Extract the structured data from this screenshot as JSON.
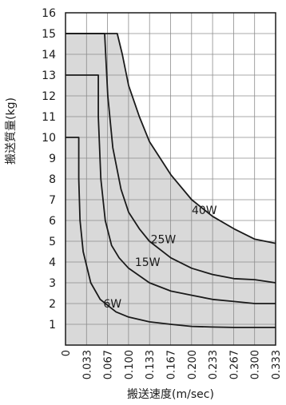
{
  "chart_data": {
    "type": "line",
    "xlabel": "搬送速度(m/sec)",
    "ylabel": "搬送質量(kg)",
    "xlim": [
      0,
      0.333
    ],
    "ylim": [
      0,
      16
    ],
    "x_ticks": [
      "0",
      "0.033",
      "0.067",
      "0.100",
      "0.133",
      "0.167",
      "0.200",
      "0.233",
      "0.267",
      "0.300",
      "0.333"
    ],
    "y_ticks": [
      "1",
      "2",
      "3",
      "4",
      "5",
      "6",
      "7",
      "8",
      "9",
      "10",
      "11",
      "12",
      "13",
      "14",
      "15",
      "16"
    ],
    "grid": true,
    "fill_color": "#d9d9d9",
    "line_color": "#1a1a1a",
    "series": [
      {
        "name": "6W",
        "points": [
          [
            0,
            10
          ],
          [
            0.021,
            10
          ],
          [
            0.021,
            8
          ],
          [
            0.023,
            6
          ],
          [
            0.028,
            4.5
          ],
          [
            0.04,
            3
          ],
          [
            0.055,
            2.2
          ],
          [
            0.08,
            1.6
          ],
          [
            0.1,
            1.35
          ],
          [
            0.133,
            1.12
          ],
          [
            0.167,
            1.0
          ],
          [
            0.2,
            0.9
          ],
          [
            0.233,
            0.87
          ],
          [
            0.267,
            0.85
          ],
          [
            0.3,
            0.85
          ],
          [
            0.333,
            0.85
          ]
        ]
      },
      {
        "name": "15W",
        "points": [
          [
            0,
            13
          ],
          [
            0.052,
            13
          ],
          [
            0.052,
            11
          ],
          [
            0.056,
            8
          ],
          [
            0.063,
            6
          ],
          [
            0.073,
            4.8
          ],
          [
            0.085,
            4.2
          ],
          [
            0.1,
            3.7
          ],
          [
            0.133,
            3.0
          ],
          [
            0.167,
            2.6
          ],
          [
            0.2,
            2.4
          ],
          [
            0.233,
            2.2
          ],
          [
            0.267,
            2.1
          ],
          [
            0.3,
            2.0
          ],
          [
            0.333,
            2.0
          ]
        ]
      },
      {
        "name": "25W",
        "points": [
          [
            0,
            15
          ],
          [
            0.062,
            15
          ],
          [
            0.067,
            12
          ],
          [
            0.075,
            9.5
          ],
          [
            0.088,
            7.5
          ],
          [
            0.1,
            6.4
          ],
          [
            0.117,
            5.6
          ],
          [
            0.133,
            5.0
          ],
          [
            0.167,
            4.2
          ],
          [
            0.2,
            3.7
          ],
          [
            0.233,
            3.4
          ],
          [
            0.267,
            3.2
          ],
          [
            0.3,
            3.15
          ],
          [
            0.333,
            3.0
          ]
        ]
      },
      {
        "name": "40W",
        "points": [
          [
            0,
            15
          ],
          [
            0.082,
            15
          ],
          [
            0.09,
            14
          ],
          [
            0.1,
            12.5
          ],
          [
            0.117,
            11
          ],
          [
            0.133,
            9.8
          ],
          [
            0.167,
            8.2
          ],
          [
            0.2,
            7.0
          ],
          [
            0.233,
            6.2
          ],
          [
            0.267,
            5.6
          ],
          [
            0.3,
            5.1
          ],
          [
            0.333,
            4.9
          ]
        ]
      }
    ],
    "labels": [
      {
        "text": "40W",
        "x": 0.2,
        "y": 6.3
      },
      {
        "text": "25W",
        "x": 0.135,
        "y": 4.9
      },
      {
        "text": "15W",
        "x": 0.11,
        "y": 3.8
      },
      {
        "text": "6W",
        "x": 0.06,
        "y": 1.8
      }
    ]
  }
}
